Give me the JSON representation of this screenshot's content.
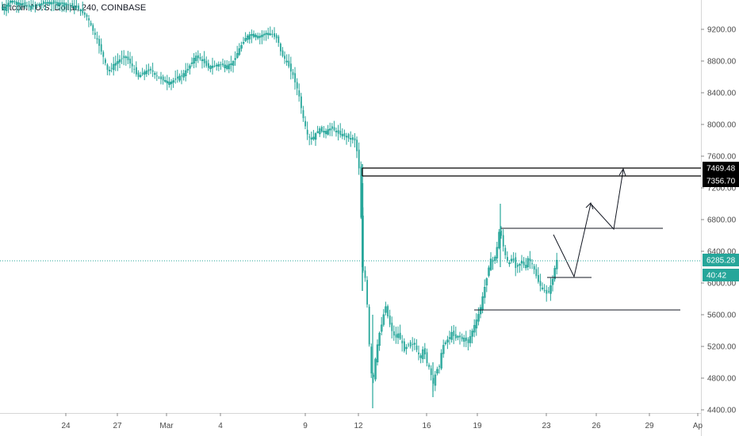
{
  "header": {
    "title": "Bitcoin / U.S. Dollar, 240, COINBASE"
  },
  "colors": {
    "up": "#26a69a",
    "down": "#26a69a",
    "last_price": "#26a69a",
    "level_box": "#000000",
    "drawings": "#131722"
  },
  "chart_data": {
    "type": "candlestick",
    "symbol": "Bitcoin / U.S. Dollar",
    "interval": "240",
    "exchange": "COINBASE",
    "y_ticks": [
      "9200.00",
      "8800.00",
      "8400.00",
      "8000.00",
      "7600.00",
      "7200.00",
      "6800.00",
      "6400.00",
      "6000.00",
      "5600.00",
      "5200.00",
      "4800.00",
      "4400.00"
    ],
    "x_ticks": [
      "24",
      "27",
      "Mar",
      "4",
      "9",
      "12",
      "16",
      "19",
      "23",
      "26",
      "29",
      "Ap"
    ],
    "ylim": [
      4400,
      9600
    ],
    "last_price": "6285.28",
    "countdown": "40:42",
    "levels": [
      {
        "price": 7469.48,
        "label": "7469.48"
      },
      {
        "price": 7356.7,
        "label": "7356.70"
      }
    ],
    "grid": false,
    "price_path": [
      [
        0,
        9500
      ],
      [
        6,
        9450
      ],
      [
        15,
        9560
      ],
      [
        40,
        9480
      ],
      [
        60,
        9540
      ],
      [
        85,
        9520
      ],
      [
        100,
        9470
      ],
      [
        112,
        9350
      ],
      [
        120,
        9160
      ],
      [
        126,
        9020
      ],
      [
        132,
        8850
      ],
      [
        138,
        8660
      ],
      [
        144,
        8740
      ],
      [
        152,
        8810
      ],
      [
        160,
        8860
      ],
      [
        168,
        8740
      ],
      [
        176,
        8600
      ],
      [
        184,
        8660
      ],
      [
        192,
        8690
      ],
      [
        200,
        8600
      ],
      [
        208,
        8560
      ],
      [
        216,
        8520
      ],
      [
        224,
        8580
      ],
      [
        232,
        8620
      ],
      [
        240,
        8720
      ],
      [
        248,
        8860
      ],
      [
        256,
        8820
      ],
      [
        264,
        8720
      ],
      [
        272,
        8740
      ],
      [
        280,
        8760
      ],
      [
        288,
        8730
      ],
      [
        296,
        8790
      ],
      [
        304,
        8960
      ],
      [
        312,
        9100
      ],
      [
        320,
        9140
      ],
      [
        328,
        9100
      ],
      [
        336,
        9150
      ],
      [
        344,
        9140
      ],
      [
        352,
        9080
      ],
      [
        356,
        8900
      ],
      [
        364,
        8780
      ],
      [
        372,
        8600
      ],
      [
        378,
        8400
      ],
      [
        384,
        8080
      ],
      [
        390,
        7840
      ],
      [
        396,
        7820
      ],
      [
        404,
        7940
      ],
      [
        412,
        7900
      ],
      [
        420,
        7960
      ],
      [
        428,
        7890
      ],
      [
        436,
        7860
      ],
      [
        444,
        7820
      ],
      [
        450,
        7800
      ],
      [
        454,
        7500
      ],
      [
        456,
        7260
      ],
      [
        458,
        6400
      ],
      [
        460,
        6100
      ],
      [
        463,
        6050
      ],
      [
        466,
        5500
      ],
      [
        469,
        4900
      ],
      [
        472,
        4760
      ],
      [
        476,
        5100
      ],
      [
        480,
        5350
      ],
      [
        484,
        5520
      ],
      [
        488,
        5720
      ],
      [
        492,
        5520
      ],
      [
        496,
        5400
      ],
      [
        500,
        5300
      ],
      [
        504,
        5360
      ],
      [
        508,
        5260
      ],
      [
        512,
        5140
      ],
      [
        516,
        5240
      ],
      [
        520,
        5200
      ],
      [
        524,
        5260
      ],
      [
        528,
        5120
      ],
      [
        532,
        5060
      ],
      [
        536,
        5180
      ],
      [
        540,
        5000
      ],
      [
        544,
        4900
      ],
      [
        548,
        4720
      ],
      [
        552,
        4900
      ],
      [
        556,
        4960
      ],
      [
        560,
        5200
      ],
      [
        564,
        5260
      ],
      [
        568,
        5300
      ],
      [
        572,
        5380
      ],
      [
        576,
        5300
      ],
      [
        580,
        5340
      ],
      [
        584,
        5290
      ],
      [
        588,
        5300
      ],
      [
        592,
        5240
      ],
      [
        596,
        5360
      ],
      [
        600,
        5460
      ],
      [
        604,
        5560
      ],
      [
        608,
        5700
      ],
      [
        612,
        5900
      ],
      [
        616,
        6080
      ],
      [
        620,
        6300
      ],
      [
        624,
        6260
      ],
      [
        628,
        6400
      ],
      [
        632,
        6700
      ],
      [
        636,
        6480
      ],
      [
        640,
        6300
      ],
      [
        644,
        6240
      ],
      [
        648,
        6340
      ],
      [
        652,
        6200
      ],
      [
        656,
        6220
      ],
      [
        660,
        6280
      ],
      [
        664,
        6180
      ],
      [
        668,
        6320
      ],
      [
        672,
        6250
      ],
      [
        676,
        6150
      ],
      [
        680,
        6030
      ],
      [
        684,
        5950
      ],
      [
        688,
        5900
      ],
      [
        692,
        5860
      ],
      [
        696,
        5950
      ],
      [
        700,
        6100
      ],
      [
        702,
        6220
      ],
      [
        704,
        6285
      ]
    ]
  }
}
